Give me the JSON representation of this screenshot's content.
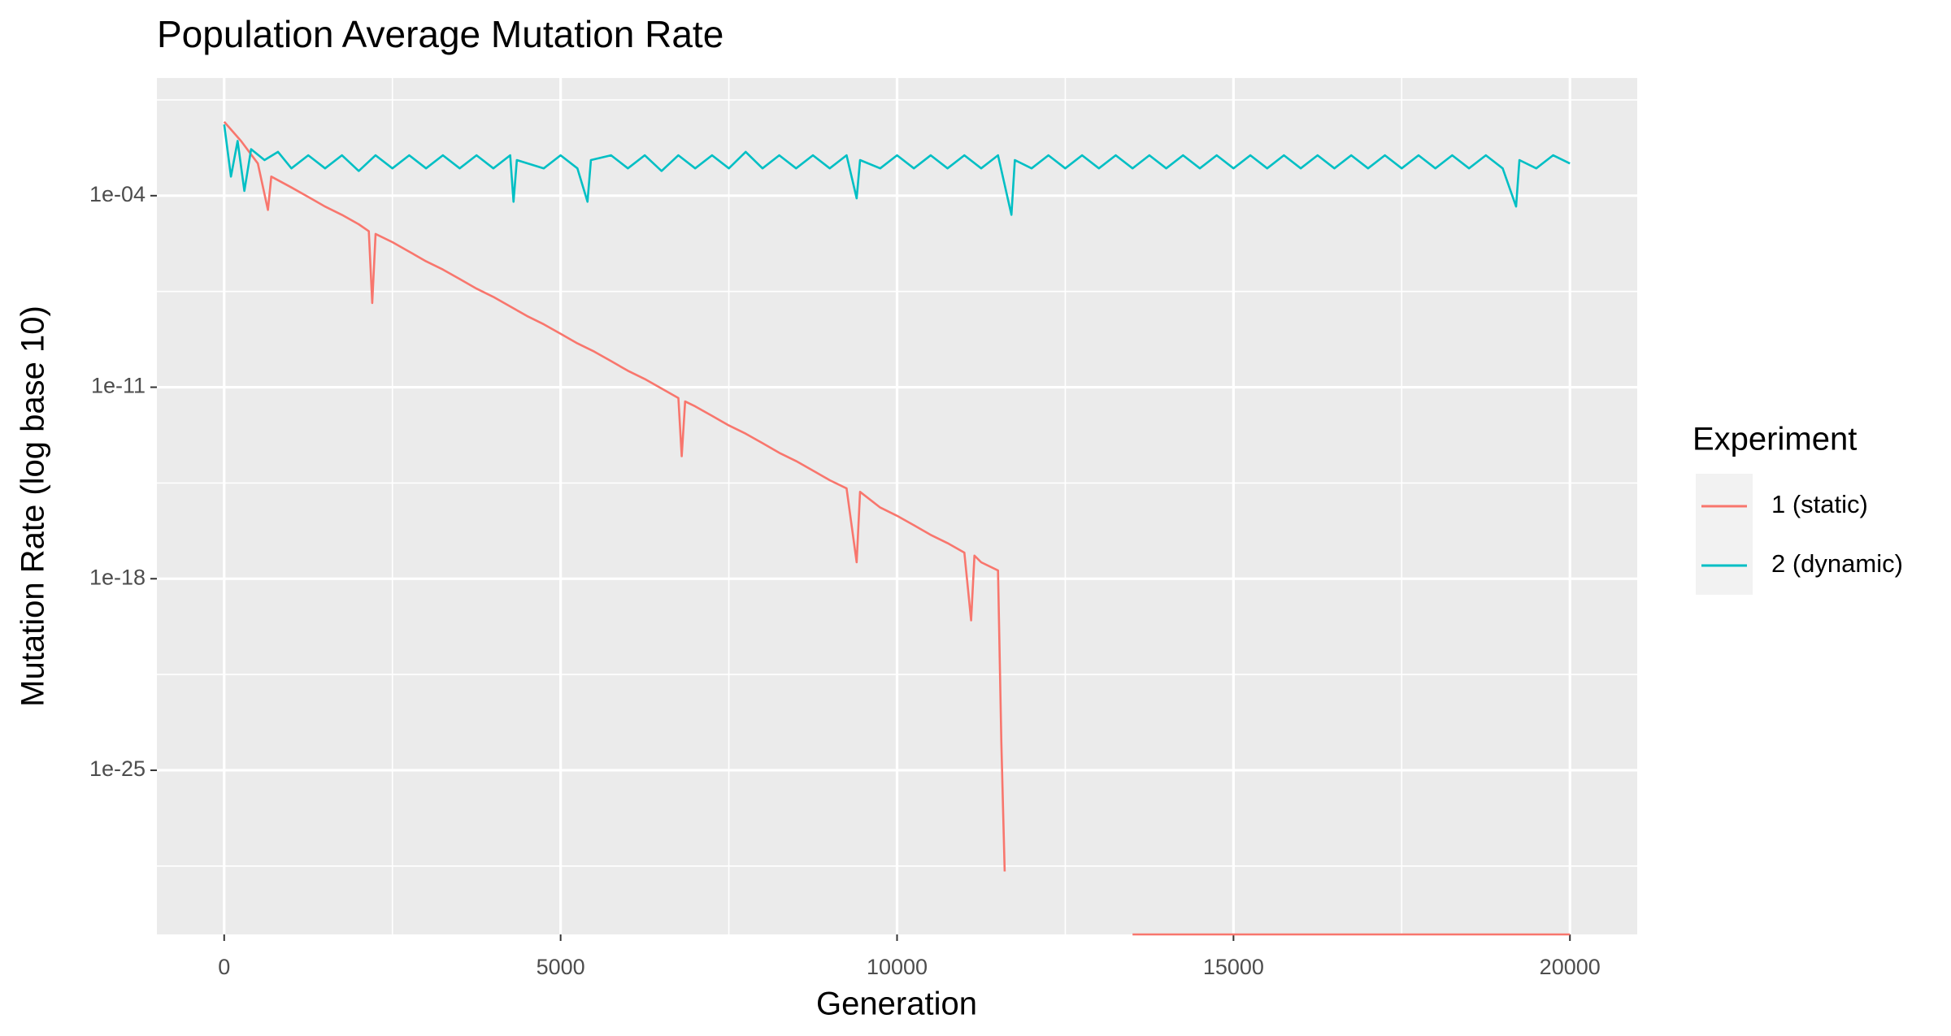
{
  "chart_data": {
    "type": "line",
    "title": "Population Average Mutation Rate",
    "x_label": "Generation",
    "y_label": "Mutation Rate (log base 10)",
    "legend_title": "Experiment",
    "ylog": true,
    "grid": true,
    "legend_position": "right",
    "xlim": [
      -1000,
      21000
    ],
    "xticks": [
      0,
      5000,
      10000,
      15000,
      20000
    ],
    "ylim": [
      1e-31,
      2
    ],
    "yticks": [
      {
        "value": 0.0001,
        "label": "1e-04"
      },
      {
        "value": 1e-11,
        "label": "1e-11"
      },
      {
        "value": 1e-18,
        "label": "1e-18"
      },
      {
        "value": 1e-25,
        "label": "1e-25"
      }
    ],
    "series": [
      {
        "name": "1 (static)",
        "color": "#F8766D",
        "x": [
          0,
          250,
          500,
          650,
          700,
          1000,
          1250,
          1500,
          1750,
          2000,
          2150,
          2200,
          2250,
          2500,
          2750,
          3000,
          3250,
          3500,
          3750,
          4000,
          4250,
          4500,
          4750,
          5000,
          5250,
          5500,
          5750,
          6000,
          6250,
          6500,
          6750,
          6800,
          6850,
          7000,
          7250,
          7500,
          7750,
          8000,
          8250,
          8500,
          8750,
          9000,
          9250,
          9400,
          9450,
          9750,
          10000,
          10250,
          10500,
          10750,
          11000,
          11100,
          11150,
          11250,
          11500,
          11550,
          11600,
          12000,
          13500,
          20000
        ],
        "values": [
          0.05,
          0.01,
          0.0015,
          3e-05,
          0.0005,
          0.0002,
          9e-05,
          4e-05,
          2e-05,
          9e-06,
          5e-06,
          1.2e-08,
          4e-06,
          2e-06,
          9e-07,
          4e-07,
          2e-07,
          9e-08,
          4e-08,
          2e-08,
          9e-09,
          4e-09,
          2e-09,
          9e-10,
          4e-10,
          2e-10,
          9e-11,
          4e-11,
          2e-11,
          9e-12,
          4e-12,
          3e-14,
          3e-12,
          2e-12,
          9e-13,
          4e-13,
          2e-13,
          9e-14,
          4e-14,
          2e-14,
          9e-15,
          4e-15,
          2e-15,
          4e-18,
          1.5e-15,
          4e-16,
          2e-16,
          9e-17,
          4e-17,
          2e-17,
          9e-18,
          3e-20,
          7e-18,
          4e-18,
          2e-18,
          1e-24,
          2e-29,
          null,
          1e-31,
          1e-31
        ]
      },
      {
        "name": "2 (dynamic)",
        "color": "#00BFC4",
        "x": [
          0,
          100,
          200,
          300,
          400,
          600,
          800,
          1000,
          1250,
          1500,
          1750,
          2000,
          2250,
          2500,
          2750,
          3000,
          3250,
          3500,
          3750,
          4000,
          4250,
          4300,
          4350,
          4750,
          5000,
          5250,
          5400,
          5450,
          5750,
          6000,
          6250,
          6500,
          6750,
          7000,
          7250,
          7500,
          7750,
          8000,
          8250,
          8500,
          8750,
          9000,
          9250,
          9400,
          9450,
          9750,
          10000,
          10250,
          10500,
          10750,
          11000,
          11250,
          11500,
          11700,
          11750,
          12000,
          12250,
          12500,
          12750,
          13000,
          13250,
          13500,
          13750,
          14000,
          14250,
          14500,
          14750,
          15000,
          15250,
          15500,
          15750,
          16000,
          16250,
          16500,
          16750,
          17000,
          17250,
          17500,
          17750,
          18000,
          18250,
          18500,
          18750,
          19000,
          19200,
          19250,
          19500,
          19750,
          20000
        ],
        "values": [
          0.04,
          0.0005,
          0.01,
          0.00015,
          0.005,
          0.002,
          0.004,
          0.001,
          0.003,
          0.001,
          0.003,
          0.0008,
          0.003,
          0.001,
          0.003,
          0.001,
          0.003,
          0.001,
          0.003,
          0.001,
          0.003,
          6e-05,
          0.002,
          0.001,
          0.003,
          0.001,
          6e-05,
          0.002,
          0.003,
          0.001,
          0.003,
          0.0008,
          0.003,
          0.001,
          0.003,
          0.001,
          0.004,
          0.001,
          0.003,
          0.001,
          0.003,
          0.001,
          0.003,
          8e-05,
          0.002,
          0.001,
          0.003,
          0.001,
          0.003,
          0.001,
          0.003,
          0.001,
          0.003,
          2e-05,
          0.002,
          0.001,
          0.003,
          0.001,
          0.003,
          0.001,
          0.003,
          0.001,
          0.003,
          0.001,
          0.003,
          0.001,
          0.003,
          0.001,
          0.003,
          0.001,
          0.003,
          0.001,
          0.003,
          0.001,
          0.003,
          0.001,
          0.003,
          0.001,
          0.003,
          0.001,
          0.003,
          0.001,
          0.003,
          0.001,
          4e-05,
          0.002,
          0.001,
          0.003,
          0.0015
        ]
      }
    ]
  }
}
